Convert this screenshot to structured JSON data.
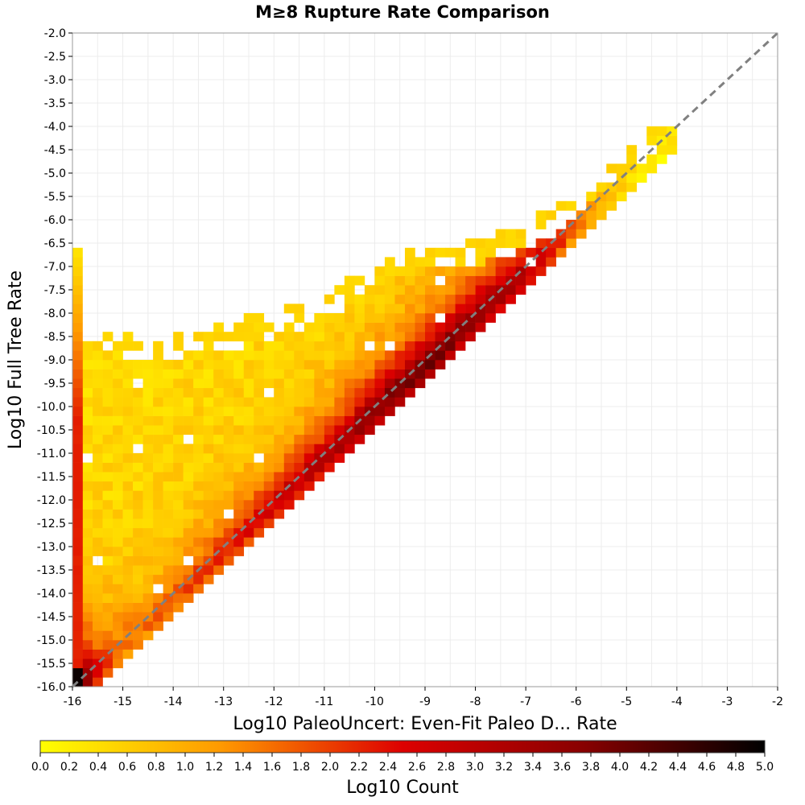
{
  "chart_data": {
    "type": "heatmap",
    "title": "M≥8 Rupture Rate Comparison",
    "xlabel": "Log10 PaleoUncert: Even-Fit Paleo D... Rate",
    "ylabel": "Log10 Full Tree Rate",
    "xlim": [
      -16,
      -2
    ],
    "ylim": [
      -16,
      -2
    ],
    "x_ticks": [
      "-16",
      "-15",
      "-14",
      "-13",
      "-12",
      "-11",
      "-10",
      "-9",
      "-8",
      "-7",
      "-6",
      "-5",
      "-4",
      "-3",
      "-2"
    ],
    "y_ticks": [
      "-2.0",
      "-2.5",
      "-3.0",
      "-3.5",
      "-4.0",
      "-4.5",
      "-5.0",
      "-5.5",
      "-6.0",
      "-6.5",
      "-7.0",
      "-7.5",
      "-8.0",
      "-8.5",
      "-9.0",
      "-9.5",
      "-10.0",
      "-10.5",
      "-11.0",
      "-11.5",
      "-12.0",
      "-12.5",
      "-13.0",
      "-13.5",
      "-14.0",
      "-14.5",
      "-15.0",
      "-15.5",
      "-16.0"
    ],
    "bin_width": 0.2,
    "reference_line": {
      "from": [
        -16,
        -16
      ],
      "to": [
        -2,
        -2
      ],
      "style": "dashed",
      "color": "#808080"
    },
    "grid": true,
    "colorbar": {
      "label": "Log10 Count",
      "min": 0.0,
      "max": 5.0,
      "ticks": [
        "0.0",
        "0.2",
        "0.4",
        "0.6",
        "0.8",
        "1.0",
        "1.2",
        "1.4",
        "1.6",
        "1.8",
        "2.0",
        "2.2",
        "2.4",
        "2.6",
        "2.8",
        "3.0",
        "3.2",
        "3.4",
        "3.6",
        "3.8",
        "4.0",
        "4.2",
        "4.4",
        "4.6",
        "4.8",
        "5.0"
      ],
      "colors": [
        "#ffff00",
        "#ff9900",
        "#dd0000",
        "#880000",
        "#000000"
      ],
      "position": "bottom"
    },
    "diagonal_bins": [
      -15.9,
      -15.5,
      -15.0,
      -14.5,
      -14.0,
      -13.5,
      -13.0,
      -12.5,
      -12.0,
      -11.5,
      -11.0,
      -10.5,
      -10.0,
      -9.5,
      -9.0,
      -8.5,
      -8.0,
      -7.5,
      -7.0,
      -6.5,
      -6.0,
      -5.5,
      -5.0,
      -4.5
    ],
    "diagonal_log10_counts": [
      4.9,
      2.4,
      1.6,
      1.6,
      1.8,
      2.0,
      2.2,
      2.4,
      2.6,
      2.8,
      3.0,
      3.3,
      3.6,
      3.8,
      3.9,
      3.7,
      3.5,
      3.3,
      3.0,
      2.4,
      1.5,
      0.9,
      0.5,
      0.2
    ],
    "left_edge_column": {
      "x": -15.9,
      "y_range": [
        -16.0,
        -6.6
      ],
      "log10_count_range": [
        0.0,
        4.9
      ]
    },
    "upper_envelope": {
      "x": [
        -15.7,
        -15.0,
        -14.0,
        -13.0,
        -12.0,
        -11.0,
        -10.0,
        -9.0,
        -8.0,
        -7.0,
        -6.0,
        -5.0,
        -4.3
      ],
      "y": [
        -8.7,
        -8.7,
        -8.8,
        -8.6,
        -8.3,
        -8.0,
        -7.2,
        -6.8,
        -6.8,
        -6.4,
        -5.8,
        -4.8,
        -4.3
      ]
    }
  }
}
